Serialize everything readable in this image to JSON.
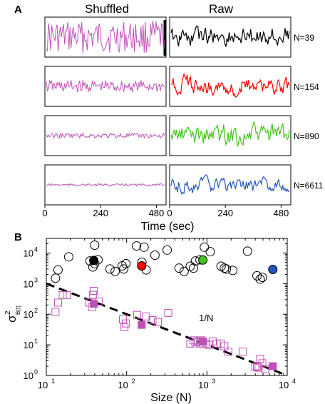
{
  "panel_a": {
    "letter": "A",
    "col_left_title": "Shuffled",
    "col_right_title": "Raw",
    "xlabel": "Time (sec)",
    "xticks": [
      "0",
      "240",
      "480"
    ],
    "rows": [
      {
        "label": "N=39",
        "raw_color": "#000000",
        "shuffled_amp": 0.9,
        "raw_amp": 0.75
      },
      {
        "label": "N=154",
        "raw_color": "#ff0000",
        "shuffled_amp": 0.35,
        "raw_amp": 0.7
      },
      {
        "label": "N=890",
        "raw_color": "#44c21e",
        "shuffled_amp": 0.14,
        "raw_amp": 0.8
      },
      {
        "label": "N=6611",
        "raw_color": "#2255bb",
        "shuffled_amp": 0.06,
        "raw_amp": 0.6
      }
    ],
    "shuffled_color": "#c050b8"
  },
  "chart_data": {
    "type": "scatter",
    "letter": "B",
    "xlabel": "Size (N)",
    "ylabel_base": "σ",
    "ylabel_sup": "2",
    "ylabel_sub": "B(t)",
    "xscale": "log",
    "yscale": "log",
    "xlim": [
      10,
      10000
    ],
    "ylim": [
      1,
      30000
    ],
    "xtick_exponents": [
      1,
      2,
      3,
      4
    ],
    "ytick_exponents": [
      0,
      1,
      2,
      3,
      4
    ],
    "tick_base": "10",
    "fit_label": "1/N",
    "fit_line": {
      "x": [
        10,
        10000
      ],
      "y": [
        1000,
        1
      ]
    },
    "series": [
      {
        "marker": "open-circle",
        "color": "#000000",
        "x": [
          13,
          14,
          19,
          35,
          38,
          40,
          40,
          44,
          62,
          72,
          88,
          92,
          98,
          133,
          155,
          165,
          175,
          225,
          320,
          450,
          520,
          620,
          680,
          720,
          820,
          930,
          1100,
          1500,
          1650,
          1750,
          2100,
          3200,
          4200,
          4600,
          4900
        ],
        "y": [
          1500,
          2800,
          7500,
          5500,
          3500,
          4500,
          18000,
          6000,
          3000,
          2500,
          3800,
          3000,
          4500,
          17000,
          5000,
          15500,
          2800,
          8500,
          12500,
          3200,
          2500,
          3700,
          3200,
          5500,
          6000,
          15500,
          11000,
          3700,
          3200,
          3000,
          2700,
          11500,
          1800,
          1400,
          1600
        ]
      },
      {
        "marker": "open-square",
        "color": "#c050b8",
        "x": [
          13,
          14,
          16,
          18,
          34,
          37,
          38,
          39,
          45,
          90,
          94,
          98,
          135,
          175,
          210,
          245,
          330,
          620,
          680,
          720,
          780,
          820,
          850,
          900,
          960,
          1050,
          1180,
          1320,
          1480,
          1650,
          1850,
          2800,
          4000,
          4200,
          4400,
          4600,
          4900,
          5300
        ],
        "y": [
          120,
          240,
          420,
          420,
          240,
          170,
          430,
          580,
          260,
          68,
          38,
          50,
          95,
          85,
          64,
          56,
          110,
          11,
          14,
          12,
          13,
          11,
          14,
          11,
          11,
          10,
          13,
          11,
          11,
          9,
          6,
          6,
          1.9,
          2.0,
          1.8,
          3.5,
          2.5,
          1.6
        ]
      },
      {
        "marker": "filled-square",
        "color": "#c050b8",
        "x": [
          39,
          154,
          890,
          6611
        ],
        "y": [
          220,
          45,
          13,
          2.0
        ]
      },
      {
        "marker": "filled-circle",
        "x": [
          39,
          154,
          890,
          6611
        ],
        "y": [
          5700,
          3800,
          5900,
          2900
        ],
        "colors": [
          "#000000",
          "#ff0000",
          "#44c21e",
          "#2255bb"
        ]
      }
    ]
  }
}
